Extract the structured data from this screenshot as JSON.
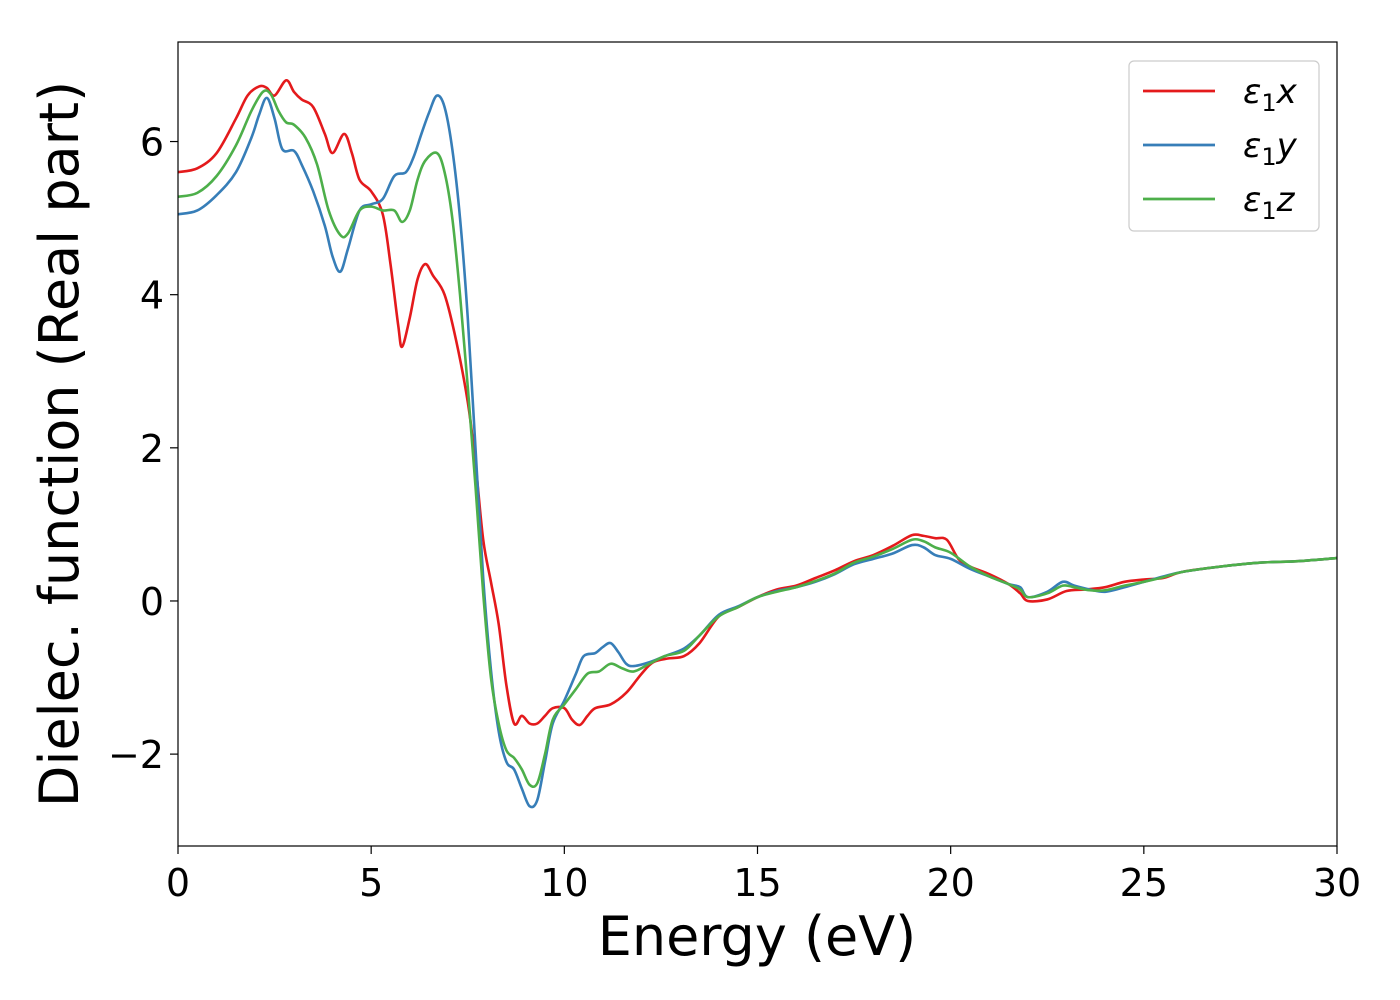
{
  "chart_data": {
    "type": "line",
    "title": "",
    "xlabel": "Energy (eV)",
    "ylabel": "Dielec. function (Real part)",
    "xlim": [
      0,
      30
    ],
    "ylim": [
      -3.2,
      7.3
    ],
    "xticks": [
      0,
      5,
      10,
      15,
      20,
      25,
      30
    ],
    "xtick_labels": [
      "0",
      "5",
      "10",
      "15",
      "20",
      "25",
      "30"
    ],
    "yticks": [
      -2,
      0,
      2,
      4,
      6
    ],
    "ytick_labels": [
      "−2",
      "0",
      "2",
      "4",
      "6"
    ],
    "grid": false,
    "legend_position": "top-right",
    "series": [
      {
        "name": "ε₁x",
        "legend_symbol": "ε",
        "legend_sub": "1",
        "legend_var": "x",
        "color": "#e41a1c",
        "points": [
          [
            0,
            5.6
          ],
          [
            0.5,
            5.65
          ],
          [
            1.0,
            5.85
          ],
          [
            1.5,
            6.3
          ],
          [
            1.8,
            6.6
          ],
          [
            2.1,
            6.72
          ],
          [
            2.3,
            6.7
          ],
          [
            2.5,
            6.6
          ],
          [
            2.8,
            6.8
          ],
          [
            3.0,
            6.65
          ],
          [
            3.2,
            6.55
          ],
          [
            3.5,
            6.45
          ],
          [
            3.8,
            6.1
          ],
          [
            4.0,
            5.85
          ],
          [
            4.3,
            6.1
          ],
          [
            4.5,
            5.85
          ],
          [
            4.7,
            5.5
          ],
          [
            5.0,
            5.35
          ],
          [
            5.3,
            5.05
          ],
          [
            5.5,
            4.4
          ],
          [
            5.7,
            3.6
          ],
          [
            5.8,
            3.32
          ],
          [
            6.0,
            3.7
          ],
          [
            6.2,
            4.2
          ],
          [
            6.4,
            4.4
          ],
          [
            6.6,
            4.25
          ],
          [
            6.9,
            4.0
          ],
          [
            7.2,
            3.4
          ],
          [
            7.5,
            2.6
          ],
          [
            7.7,
            1.8
          ],
          [
            7.9,
            0.8
          ],
          [
            8.1,
            0.25
          ],
          [
            8.3,
            -0.3
          ],
          [
            8.5,
            -1.1
          ],
          [
            8.7,
            -1.6
          ],
          [
            8.9,
            -1.5
          ],
          [
            9.1,
            -1.6
          ],
          [
            9.3,
            -1.6
          ],
          [
            9.5,
            -1.5
          ],
          [
            9.7,
            -1.4
          ],
          [
            10.0,
            -1.4
          ],
          [
            10.2,
            -1.55
          ],
          [
            10.4,
            -1.62
          ],
          [
            10.6,
            -1.5
          ],
          [
            10.8,
            -1.4
          ],
          [
            11.2,
            -1.35
          ],
          [
            11.6,
            -1.2
          ],
          [
            12.0,
            -0.95
          ],
          [
            12.3,
            -0.8
          ],
          [
            12.7,
            -0.75
          ],
          [
            13.1,
            -0.72
          ],
          [
            13.5,
            -0.55
          ],
          [
            14.0,
            -0.2
          ],
          [
            14.5,
            -0.08
          ],
          [
            15.0,
            0.05
          ],
          [
            15.5,
            0.15
          ],
          [
            16.0,
            0.2
          ],
          [
            16.5,
            0.3
          ],
          [
            17.0,
            0.4
          ],
          [
            17.5,
            0.52
          ],
          [
            18.0,
            0.6
          ],
          [
            18.5,
            0.72
          ],
          [
            19.0,
            0.86
          ],
          [
            19.3,
            0.85
          ],
          [
            19.6,
            0.82
          ],
          [
            19.9,
            0.8
          ],
          [
            20.2,
            0.55
          ],
          [
            20.5,
            0.45
          ],
          [
            21.0,
            0.35
          ],
          [
            21.5,
            0.22
          ],
          [
            21.8,
            0.1
          ],
          [
            22.0,
            0.0
          ],
          [
            22.5,
            0.02
          ],
          [
            23.0,
            0.13
          ],
          [
            23.5,
            0.15
          ],
          [
            24.0,
            0.18
          ],
          [
            24.5,
            0.25
          ],
          [
            25.0,
            0.28
          ],
          [
            25.5,
            0.3
          ],
          [
            26.0,
            0.38
          ],
          [
            27.0,
            0.45
          ],
          [
            28.0,
            0.5
          ],
          [
            29.0,
            0.52
          ],
          [
            30.0,
            0.56
          ]
        ]
      },
      {
        "name": "ε₁y",
        "legend_symbol": "ε",
        "legend_sub": "1",
        "legend_var": "y",
        "color": "#377eb8",
        "points": [
          [
            0,
            5.05
          ],
          [
            0.5,
            5.1
          ],
          [
            1.0,
            5.3
          ],
          [
            1.5,
            5.6
          ],
          [
            1.9,
            6.05
          ],
          [
            2.1,
            6.35
          ],
          [
            2.3,
            6.57
          ],
          [
            2.5,
            6.3
          ],
          [
            2.7,
            5.9
          ],
          [
            3.0,
            5.88
          ],
          [
            3.2,
            5.7
          ],
          [
            3.5,
            5.35
          ],
          [
            3.8,
            4.9
          ],
          [
            4.0,
            4.5
          ],
          [
            4.2,
            4.3
          ],
          [
            4.4,
            4.6
          ],
          [
            4.7,
            5.1
          ],
          [
            5.0,
            5.18
          ],
          [
            5.3,
            5.25
          ],
          [
            5.6,
            5.55
          ],
          [
            5.9,
            5.6
          ],
          [
            6.1,
            5.8
          ],
          [
            6.3,
            6.1
          ],
          [
            6.5,
            6.38
          ],
          [
            6.7,
            6.6
          ],
          [
            6.9,
            6.45
          ],
          [
            7.1,
            5.9
          ],
          [
            7.3,
            5.0
          ],
          [
            7.5,
            3.7
          ],
          [
            7.7,
            2.0
          ],
          [
            7.9,
            0.3
          ],
          [
            8.1,
            -0.9
          ],
          [
            8.3,
            -1.7
          ],
          [
            8.5,
            -2.1
          ],
          [
            8.7,
            -2.2
          ],
          [
            8.9,
            -2.45
          ],
          [
            9.1,
            -2.68
          ],
          [
            9.3,
            -2.6
          ],
          [
            9.5,
            -2.1
          ],
          [
            9.7,
            -1.6
          ],
          [
            10.0,
            -1.3
          ],
          [
            10.3,
            -0.95
          ],
          [
            10.5,
            -0.72
          ],
          [
            10.8,
            -0.68
          ],
          [
            11.0,
            -0.6
          ],
          [
            11.2,
            -0.55
          ],
          [
            11.4,
            -0.67
          ],
          [
            11.6,
            -0.82
          ],
          [
            11.8,
            -0.85
          ],
          [
            12.2,
            -0.8
          ],
          [
            12.6,
            -0.72
          ],
          [
            13.1,
            -0.62
          ],
          [
            13.5,
            -0.45
          ],
          [
            14.0,
            -0.18
          ],
          [
            14.5,
            -0.07
          ],
          [
            15.0,
            0.05
          ],
          [
            15.5,
            0.13
          ],
          [
            16.0,
            0.18
          ],
          [
            16.5,
            0.25
          ],
          [
            17.0,
            0.35
          ],
          [
            17.5,
            0.48
          ],
          [
            18.0,
            0.55
          ],
          [
            18.5,
            0.62
          ],
          [
            19.0,
            0.73
          ],
          [
            19.3,
            0.7
          ],
          [
            19.6,
            0.6
          ],
          [
            20.0,
            0.55
          ],
          [
            20.5,
            0.42
          ],
          [
            21.0,
            0.32
          ],
          [
            21.5,
            0.22
          ],
          [
            21.8,
            0.18
          ],
          [
            22.0,
            0.05
          ],
          [
            22.5,
            0.12
          ],
          [
            22.9,
            0.25
          ],
          [
            23.2,
            0.2
          ],
          [
            23.6,
            0.15
          ],
          [
            24.0,
            0.12
          ],
          [
            24.5,
            0.18
          ],
          [
            25.0,
            0.25
          ],
          [
            25.5,
            0.32
          ],
          [
            26.0,
            0.38
          ],
          [
            27.0,
            0.45
          ],
          [
            28.0,
            0.5
          ],
          [
            29.0,
            0.52
          ],
          [
            30.0,
            0.56
          ]
        ]
      },
      {
        "name": "ε₁z",
        "legend_symbol": "ε",
        "legend_sub": "1",
        "legend_var": "z",
        "color": "#4daf4a",
        "points": [
          [
            0,
            5.28
          ],
          [
            0.5,
            5.33
          ],
          [
            1.0,
            5.55
          ],
          [
            1.5,
            5.95
          ],
          [
            1.9,
            6.4
          ],
          [
            2.2,
            6.65
          ],
          [
            2.4,
            6.62
          ],
          [
            2.6,
            6.4
          ],
          [
            2.8,
            6.25
          ],
          [
            3.0,
            6.22
          ],
          [
            3.3,
            6.05
          ],
          [
            3.6,
            5.7
          ],
          [
            3.9,
            5.1
          ],
          [
            4.2,
            4.78
          ],
          [
            4.4,
            4.8
          ],
          [
            4.7,
            5.1
          ],
          [
            5.0,
            5.15
          ],
          [
            5.3,
            5.1
          ],
          [
            5.6,
            5.1
          ],
          [
            5.8,
            4.95
          ],
          [
            6.0,
            5.1
          ],
          [
            6.2,
            5.5
          ],
          [
            6.4,
            5.75
          ],
          [
            6.7,
            5.85
          ],
          [
            6.9,
            5.6
          ],
          [
            7.1,
            5.0
          ],
          [
            7.3,
            4.0
          ],
          [
            7.5,
            2.8
          ],
          [
            7.7,
            1.5
          ],
          [
            7.9,
            0.1
          ],
          [
            8.1,
            -1.0
          ],
          [
            8.3,
            -1.6
          ],
          [
            8.5,
            -1.95
          ],
          [
            8.7,
            -2.05
          ],
          [
            8.9,
            -2.2
          ],
          [
            9.1,
            -2.4
          ],
          [
            9.3,
            -2.38
          ],
          [
            9.5,
            -2.0
          ],
          [
            9.7,
            -1.55
          ],
          [
            10.0,
            -1.35
          ],
          [
            10.3,
            -1.15
          ],
          [
            10.6,
            -0.95
          ],
          [
            10.9,
            -0.92
          ],
          [
            11.2,
            -0.82
          ],
          [
            11.5,
            -0.88
          ],
          [
            11.8,
            -0.92
          ],
          [
            12.2,
            -0.82
          ],
          [
            12.6,
            -0.72
          ],
          [
            13.1,
            -0.65
          ],
          [
            13.5,
            -0.45
          ],
          [
            14.0,
            -0.2
          ],
          [
            14.5,
            -0.08
          ],
          [
            15.0,
            0.05
          ],
          [
            15.5,
            0.12
          ],
          [
            16.0,
            0.18
          ],
          [
            16.5,
            0.26
          ],
          [
            17.0,
            0.36
          ],
          [
            17.5,
            0.5
          ],
          [
            18.0,
            0.58
          ],
          [
            18.5,
            0.68
          ],
          [
            19.0,
            0.8
          ],
          [
            19.3,
            0.78
          ],
          [
            19.6,
            0.7
          ],
          [
            20.0,
            0.63
          ],
          [
            20.5,
            0.45
          ],
          [
            21.0,
            0.32
          ],
          [
            21.5,
            0.22
          ],
          [
            21.8,
            0.15
          ],
          [
            22.0,
            0.05
          ],
          [
            22.5,
            0.1
          ],
          [
            22.9,
            0.2
          ],
          [
            23.2,
            0.18
          ],
          [
            23.6,
            0.14
          ],
          [
            24.0,
            0.14
          ],
          [
            24.5,
            0.2
          ],
          [
            25.0,
            0.25
          ],
          [
            25.5,
            0.31
          ],
          [
            26.0,
            0.38
          ],
          [
            27.0,
            0.45
          ],
          [
            28.0,
            0.5
          ],
          [
            29.0,
            0.52
          ],
          [
            30.0,
            0.56
          ]
        ]
      }
    ]
  }
}
